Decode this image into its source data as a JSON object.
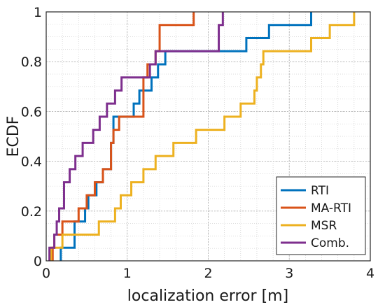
{
  "chart_data": {
    "type": "line",
    "subtype": "ecdf-step",
    "title": "",
    "xlabel": "localization error [m]",
    "ylabel": "ECDF",
    "xlim": [
      0,
      4
    ],
    "ylim": [
      0,
      1
    ],
    "xticks": [
      0,
      1,
      2,
      3,
      4
    ],
    "yticks": [
      0,
      0.2,
      0.4,
      0.6,
      0.8,
      1
    ],
    "xtick_labels": [
      "0",
      "1",
      "2",
      "3",
      "4"
    ],
    "ytick_labels": [
      "0",
      "0.2",
      "0.4",
      "0.6",
      "0.8",
      "1"
    ],
    "grid": {
      "major": true,
      "minor": true
    },
    "legend_position": "bottom-right",
    "series": [
      {
        "name": "RTI",
        "color": "#0072BD",
        "steps": [
          0.18,
          0.35,
          0.48,
          0.52,
          0.62,
          0.7,
          0.8,
          0.83,
          0.87,
          1.08,
          1.15,
          1.3,
          1.38,
          1.47,
          1.5,
          2.47,
          2.75,
          3.27
        ],
        "x": [
          0.18,
          0.35,
          0.48,
          0.52,
          0.62,
          0.7,
          0.8,
          0.83,
          0.87,
          1.08,
          1.15,
          1.3,
          1.38,
          1.47,
          1.5,
          2.47,
          2.75,
          3.27
        ],
        "y": [
          0.0526,
          0.1579,
          0.2105,
          0.2632,
          0.3158,
          0.3684,
          0.4737,
          0.5789,
          0.5789,
          0.6316,
          0.6842,
          0.7368,
          0.7895,
          0.8421,
          0.8421,
          0.8947,
          0.9474,
          1.0
        ]
      },
      {
        "name": "MA-RTI",
        "color": "#D95319",
        "x": [
          0.08,
          0.1,
          0.2,
          0.4,
          0.5,
          0.6,
          0.7,
          0.8,
          0.83,
          0.9,
          1.2,
          1.25,
          1.35,
          1.4,
          1.82
        ],
        "y": [
          0.0526,
          0.1053,
          0.1579,
          0.2105,
          0.2632,
          0.3158,
          0.3684,
          0.4737,
          0.5263,
          0.5789,
          0.7368,
          0.7895,
          0.8421,
          0.9474,
          1.0
        ]
      },
      {
        "name": "MSR",
        "color": "#EDB120",
        "x": [
          0.06,
          0.2,
          0.65,
          0.85,
          0.92,
          1.05,
          1.2,
          1.35,
          1.57,
          1.85,
          2.2,
          2.4,
          2.57,
          2.6,
          2.65,
          2.68,
          3.27,
          3.5,
          3.8
        ],
        "y": [
          0.0526,
          0.1053,
          0.1579,
          0.2105,
          0.2632,
          0.3158,
          0.3684,
          0.4211,
          0.4737,
          0.5263,
          0.5789,
          0.6316,
          0.6842,
          0.7368,
          0.7895,
          0.8421,
          0.8947,
          0.9474,
          1.0
        ]
      },
      {
        "name": "Comb.",
        "color": "#7E2F8E",
        "x": [
          0.04,
          0.1,
          0.13,
          0.16,
          0.22,
          0.29,
          0.36,
          0.45,
          0.58,
          0.66,
          0.75,
          0.85,
          0.93,
          1.08,
          1.28,
          1.35,
          2.13,
          2.15,
          2.18
        ],
        "y": [
          0.0526,
          0.1053,
          0.1579,
          0.2105,
          0.3158,
          0.3684,
          0.4211,
          0.4737,
          0.5263,
          0.5789,
          0.6316,
          0.6842,
          0.7368,
          0.7368,
          0.7895,
          0.8421,
          0.9474,
          0.9474,
          1.0
        ]
      }
    ]
  }
}
